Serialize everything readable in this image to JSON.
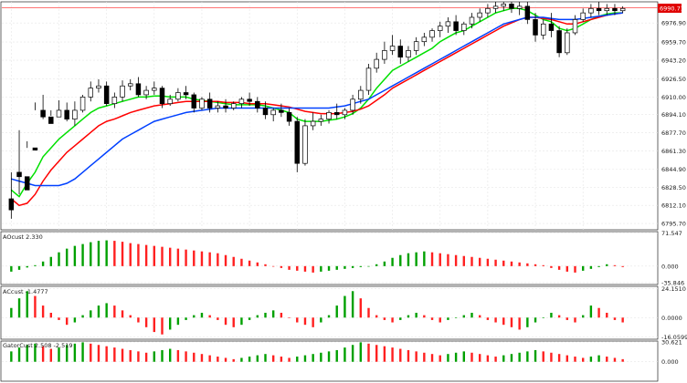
{
  "chart_data": {
    "type": "candlestick",
    "colors": {
      "up_candle": "#ffffff",
      "down_candle": "#000000",
      "green_line": "#00e000",
      "red_line": "#ff0000",
      "blue_line": "#0040ff",
      "hist_up": "#00a000",
      "hist_down": "#ff2020",
      "grid": "#e6e6e6",
      "price_line": "#ff6060",
      "price_tag_bg": "#e00000"
    },
    "main": {
      "current_price": "6990.71",
      "y_ticks": [
        "6976.90",
        "6959.70",
        "6943.20",
        "6926.50",
        "6910.00",
        "6894.10",
        "6877.70",
        "6861.30",
        "6844.90",
        "6828.50",
        "6812.10",
        "6795.70"
      ],
      "ylim": [
        6790,
        6996
      ],
      "candles": [
        [
          6818,
          6842,
          6808,
          6800
        ],
        [
          6842,
          6880,
          6838,
          6822
        ],
        [
          6838,
          6870,
          6826,
          6864
        ],
        [
          6864,
          6905,
          6862,
          6898
        ],
        [
          6898,
          6912,
          6892,
          6890
        ],
        [
          6892,
          6898,
          6886,
          6893
        ],
        [
          6892,
          6907,
          6898,
          6896
        ],
        [
          6898,
          6905,
          6890,
          6888
        ],
        [
          6890,
          6906,
          6898,
          6884
        ],
        [
          6898,
          6912,
          6910,
          6896
        ],
        [
          6910,
          6924,
          6918,
          6906
        ],
        [
          6918,
          6926,
          6920,
          6914
        ],
        [
          6920,
          6924,
          6904,
          6902
        ],
        [
          6904,
          6914,
          6910,
          6900
        ],
        [
          6910,
          6925,
          6920,
          6906
        ],
        [
          6920,
          6926,
          6922,
          6916
        ],
        [
          6922,
          6928,
          6912,
          6910
        ],
        [
          6912,
          6920,
          6916,
          6908
        ],
        [
          6916,
          6924,
          6918,
          6912
        ],
        [
          6918,
          6920,
          6904,
          6900
        ],
        [
          6904,
          6912,
          6908,
          6902
        ],
        [
          6908,
          6918,
          6914,
          6906
        ],
        [
          6914,
          6920,
          6912,
          6908
        ],
        [
          6912,
          6914,
          6900,
          6896
        ],
        [
          6900,
          6910,
          6908,
          6898
        ],
        [
          6908,
          6914,
          6900,
          6896
        ],
        [
          6900,
          6906,
          6902,
          6896
        ],
        [
          6902,
          6908,
          6900,
          6896
        ],
        [
          6900,
          6906,
          6904,
          6898
        ],
        [
          6904,
          6910,
          6908,
          6900
        ],
        [
          6908,
          6914,
          6906,
          6902
        ],
        [
          6906,
          6910,
          6900,
          6896
        ],
        [
          6900,
          6906,
          6894,
          6890
        ],
        [
          6894,
          6900,
          6898,
          6888
        ],
        [
          6898,
          6904,
          6896,
          6892
        ],
        [
          6896,
          6900,
          6888,
          6884
        ],
        [
          6888,
          6892,
          6850,
          6842
        ],
        [
          6850,
          6890,
          6884,
          6848
        ],
        [
          6884,
          6896,
          6888,
          6880
        ],
        [
          6888,
          6894,
          6890,
          6884
        ],
        [
          6890,
          6898,
          6896,
          6886
        ],
        [
          6896,
          6904,
          6894,
          6890
        ],
        [
          6894,
          6900,
          6898,
          6890
        ],
        [
          6898,
          6912,
          6908,
          6894
        ],
        [
          6908,
          6920,
          6916,
          6904
        ],
        [
          6916,
          6940,
          6936,
          6912
        ],
        [
          6936,
          6950,
          6944,
          6932
        ],
        [
          6944,
          6960,
          6952,
          6940
        ],
        [
          6952,
          6966,
          6956,
          6948
        ],
        [
          6956,
          6962,
          6946,
          6940
        ],
        [
          6946,
          6956,
          6952,
          6942
        ],
        [
          6952,
          6964,
          6960,
          6948
        ],
        [
          6960,
          6968,
          6964,
          6956
        ],
        [
          6964,
          6972,
          6970,
          6960
        ],
        [
          6970,
          6978,
          6974,
          6964
        ],
        [
          6974,
          6982,
          6978,
          6968
        ],
        [
          6978,
          6984,
          6970,
          6966
        ],
        [
          6970,
          6978,
          6976,
          6966
        ],
        [
          6976,
          6986,
          6982,
          6972
        ],
        [
          6982,
          6990,
          6986,
          6978
        ],
        [
          6986,
          6994,
          6990,
          6982
        ],
        [
          6990,
          6996,
          6992,
          6986
        ],
        [
          6992,
          6996,
          6994,
          6988
        ],
        [
          6994,
          6996,
          6990,
          6986
        ],
        [
          6990,
          6996,
          6992,
          6984
        ],
        [
          6992,
          6996,
          6980,
          6976
        ],
        [
          6980,
          6986,
          6966,
          6960
        ],
        [
          6966,
          6980,
          6976,
          6962
        ],
        [
          6976,
          6986,
          6970,
          6964
        ],
        [
          6970,
          6974,
          6950,
          6946
        ],
        [
          6950,
          6972,
          6968,
          6948
        ],
        [
          6968,
          6984,
          6980,
          6966
        ],
        [
          6980,
          6990,
          6986,
          6978
        ],
        [
          6986,
          6994,
          6990,
          6982
        ],
        [
          6990,
          6996,
          6988,
          6984
        ],
        [
          6988,
          6994,
          6990,
          6984
        ],
        [
          6990,
          6994,
          6988,
          6984
        ],
        [
          6988,
          6992,
          6990,
          6986
        ]
      ],
      "green_line": [
        6826,
        6820,
        6832,
        6842,
        6856,
        6864,
        6872,
        6878,
        6884,
        6890,
        6896,
        6900,
        6902,
        6904,
        6906,
        6908,
        6910,
        6910,
        6911,
        6911,
        6910,
        6910,
        6910,
        6908,
        6907,
        6906,
        6905,
        6904,
        6903,
        6903,
        6903,
        6903,
        6902,
        6900,
        6898,
        6896,
        6890,
        6888,
        6888,
        6888,
        6889,
        6890,
        6892,
        6895,
        6900,
        6908,
        6918,
        6926,
        6934,
        6938,
        6942,
        6946,
        6950,
        6954,
        6960,
        6964,
        6968,
        6970,
        6974,
        6978,
        6982,
        6986,
        6988,
        6990,
        6990,
        6988,
        6984,
        6980,
        6978,
        6972,
        6970,
        6972,
        6976,
        6980,
        6983,
        6985,
        6986,
        6986
      ],
      "red_line": [
        6818,
        6812,
        6814,
        6822,
        6834,
        6844,
        6852,
        6860,
        6866,
        6872,
        6878,
        6884,
        6888,
        6890,
        6893,
        6896,
        6898,
        6900,
        6902,
        6903,
        6904,
        6905,
        6906,
        6906,
        6906,
        6906,
        6906,
        6905,
        6905,
        6905,
        6904,
        6904,
        6904,
        6903,
        6902,
        6901,
        6899,
        6897,
        6896,
        6895,
        6895,
        6895,
        6896,
        6897,
        6899,
        6902,
        6907,
        6912,
        6918,
        6922,
        6926,
        6930,
        6934,
        6938,
        6942,
        6946,
        6950,
        6954,
        6958,
        6962,
        6966,
        6970,
        6974,
        6977,
        6980,
        6982,
        6982,
        6981,
        6980,
        6978,
        6976,
        6976,
        6978,
        6980,
        6982,
        6984,
        6985,
        6986
      ],
      "blue_line": [
        6836,
        6834,
        6832,
        6830,
        6830,
        6830,
        6830,
        6832,
        6836,
        6842,
        6848,
        6854,
        6860,
        6866,
        6872,
        6876,
        6880,
        6884,
        6888,
        6890,
        6892,
        6894,
        6896,
        6897,
        6898,
        6899,
        6900,
        6900,
        6900,
        6900,
        6900,
        6900,
        6900,
        6900,
        6900,
        6900,
        6900,
        6900,
        6900,
        6900,
        6900,
        6901,
        6902,
        6904,
        6906,
        6908,
        6912,
        6916,
        6920,
        6924,
        6928,
        6932,
        6936,
        6940,
        6944,
        6948,
        6952,
        6956,
        6960,
        6964,
        6968,
        6972,
        6976,
        6978,
        6980,
        6982,
        6982,
        6982,
        6981,
        6980,
        6980,
        6980,
        6981,
        6982,
        6983,
        6984,
        6985,
        6986
      ]
    },
    "ac_osc": {
      "label": "AOcust 2.330",
      "y_ticks": [
        "71.547",
        "0.000",
        "-35.846"
      ],
      "ylim": [
        -40,
        75
      ],
      "values": [
        -12,
        -8,
        -3,
        2,
        10,
        20,
        30,
        38,
        44,
        48,
        52,
        55,
        56,
        55,
        53,
        50,
        48,
        46,
        44,
        42,
        40,
        38,
        36,
        34,
        32,
        30,
        28,
        24,
        20,
        16,
        12,
        8,
        4,
        0,
        -4,
        -8,
        -10,
        -12,
        -14,
        -12,
        -10,
        -8,
        -6,
        -4,
        -2,
        0,
        4,
        10,
        18,
        24,
        28,
        30,
        32,
        30,
        28,
        26,
        24,
        22,
        20,
        18,
        16,
        14,
        12,
        10,
        8,
        6,
        4,
        2,
        -4,
        -8,
        -12,
        -14,
        -10,
        -6,
        -2,
        4,
        2,
        -2
      ]
    },
    "a_osc": {
      "label": "ACcust -1.4777",
      "y_ticks": [
        "24.1510",
        "0.0000",
        "-16.0599"
      ],
      "ylim": [
        -18,
        26
      ],
      "values": [
        8,
        16,
        22,
        18,
        10,
        4,
        -2,
        -6,
        -4,
        2,
        6,
        10,
        12,
        10,
        6,
        2,
        -4,
        -8,
        -12,
        -14,
        -10,
        -6,
        -2,
        2,
        4,
        2,
        -2,
        -6,
        -8,
        -6,
        -2,
        2,
        4,
        6,
        4,
        0,
        -4,
        -6,
        -8,
        -4,
        2,
        10,
        18,
        22,
        16,
        8,
        2,
        -2,
        -4,
        -2,
        2,
        4,
        2,
        -2,
        -4,
        -2,
        0,
        2,
        4,
        2,
        -2,
        -4,
        -6,
        -8,
        -10,
        -8,
        -4,
        0,
        4,
        2,
        -2,
        -4,
        2,
        10,
        8,
        4,
        -2,
        -4
      ]
    },
    "gator": {
      "label": "GatorCust 2.508 -2.519",
      "y_ticks": [
        "30.621",
        "0.000"
      ],
      "ylim": [
        -30,
        32
      ],
      "values": [
        16,
        22,
        26,
        28,
        24,
        20,
        22,
        26,
        28,
        30,
        28,
        26,
        24,
        22,
        20,
        18,
        16,
        14,
        16,
        18,
        20,
        18,
        16,
        14,
        12,
        10,
        8,
        6,
        4,
        6,
        8,
        10,
        12,
        10,
        8,
        6,
        8,
        10,
        12,
        14,
        16,
        18,
        22,
        26,
        30,
        28,
        26,
        24,
        22,
        20,
        18,
        16,
        14,
        12,
        10,
        12,
        14,
        16,
        14,
        12,
        10,
        8,
        10,
        12,
        14,
        16,
        18,
        16,
        14,
        12,
        10,
        8,
        6,
        8,
        10,
        8,
        6,
        4
      ]
    }
  }
}
